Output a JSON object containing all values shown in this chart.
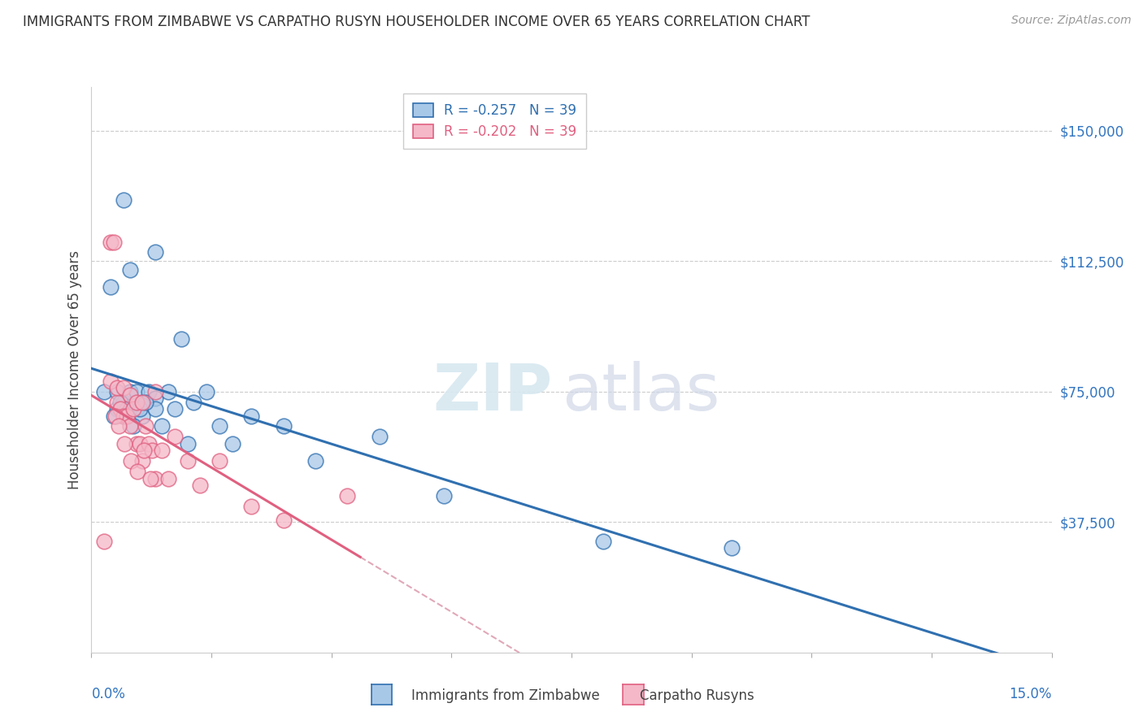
{
  "title": "IMMIGRANTS FROM ZIMBABWE VS CARPATHO RUSYN HOUSEHOLDER INCOME OVER 65 YEARS CORRELATION CHART",
  "source": "Source: ZipAtlas.com",
  "ylabel": "Householder Income Over 65 years",
  "xlim": [
    0.0,
    15.0
  ],
  "ylim": [
    0,
    162500
  ],
  "yticks": [
    37500,
    75000,
    112500,
    150000
  ],
  "ytick_labels": [
    "$37,500",
    "$75,000",
    "$112,500",
    "$150,000"
  ],
  "legend_label1": "Immigrants from Zimbabwe",
  "legend_label2": "Carpatho Rusyns",
  "color_blue": "#a8c8e8",
  "color_pink": "#f5b8c8",
  "color_blue_line": "#3070b0",
  "color_pink_line": "#e06080",
  "color_dash_line": "#e0a8b8",
  "watermark_zip": "ZIP",
  "watermark_atlas": "atlas",
  "blue_x": [
    0.2,
    0.3,
    0.4,
    0.4,
    0.5,
    0.5,
    0.5,
    0.6,
    0.6,
    0.7,
    0.7,
    0.8,
    0.8,
    0.9,
    1.0,
    1.0,
    1.0,
    1.1,
    1.2,
    1.3,
    1.4,
    1.5,
    1.6,
    1.8,
    2.0,
    2.2,
    2.5,
    3.0,
    3.5,
    4.5,
    5.5,
    8.0,
    10.0,
    0.35,
    0.45,
    0.55,
    0.65,
    0.75,
    0.85
  ],
  "blue_y": [
    75000,
    105000,
    70000,
    75000,
    72000,
    68000,
    130000,
    75000,
    110000,
    70000,
    75000,
    72000,
    68000,
    75000,
    73000,
    70000,
    115000,
    65000,
    75000,
    70000,
    90000,
    60000,
    72000,
    75000,
    65000,
    60000,
    68000,
    65000,
    55000,
    62000,
    45000,
    32000,
    30000,
    68000,
    72000,
    70000,
    65000,
    70000,
    72000
  ],
  "pink_x": [
    0.2,
    0.3,
    0.3,
    0.35,
    0.4,
    0.4,
    0.45,
    0.5,
    0.5,
    0.55,
    0.6,
    0.6,
    0.65,
    0.7,
    0.7,
    0.75,
    0.8,
    0.8,
    0.85,
    0.9,
    0.95,
    1.0,
    1.0,
    1.1,
    1.2,
    1.3,
    1.5,
    1.7,
    2.0,
    2.5,
    3.0,
    4.0,
    0.38,
    0.42,
    0.52,
    0.62,
    0.72,
    0.82,
    0.92
  ],
  "pink_y": [
    32000,
    78000,
    118000,
    118000,
    72000,
    76000,
    70000,
    76000,
    68000,
    68000,
    74000,
    65000,
    70000,
    60000,
    72000,
    60000,
    72000,
    55000,
    65000,
    60000,
    58000,
    75000,
    50000,
    58000,
    50000,
    62000,
    55000,
    48000,
    55000,
    42000,
    38000,
    45000,
    68000,
    65000,
    60000,
    55000,
    52000,
    58000,
    50000
  ]
}
